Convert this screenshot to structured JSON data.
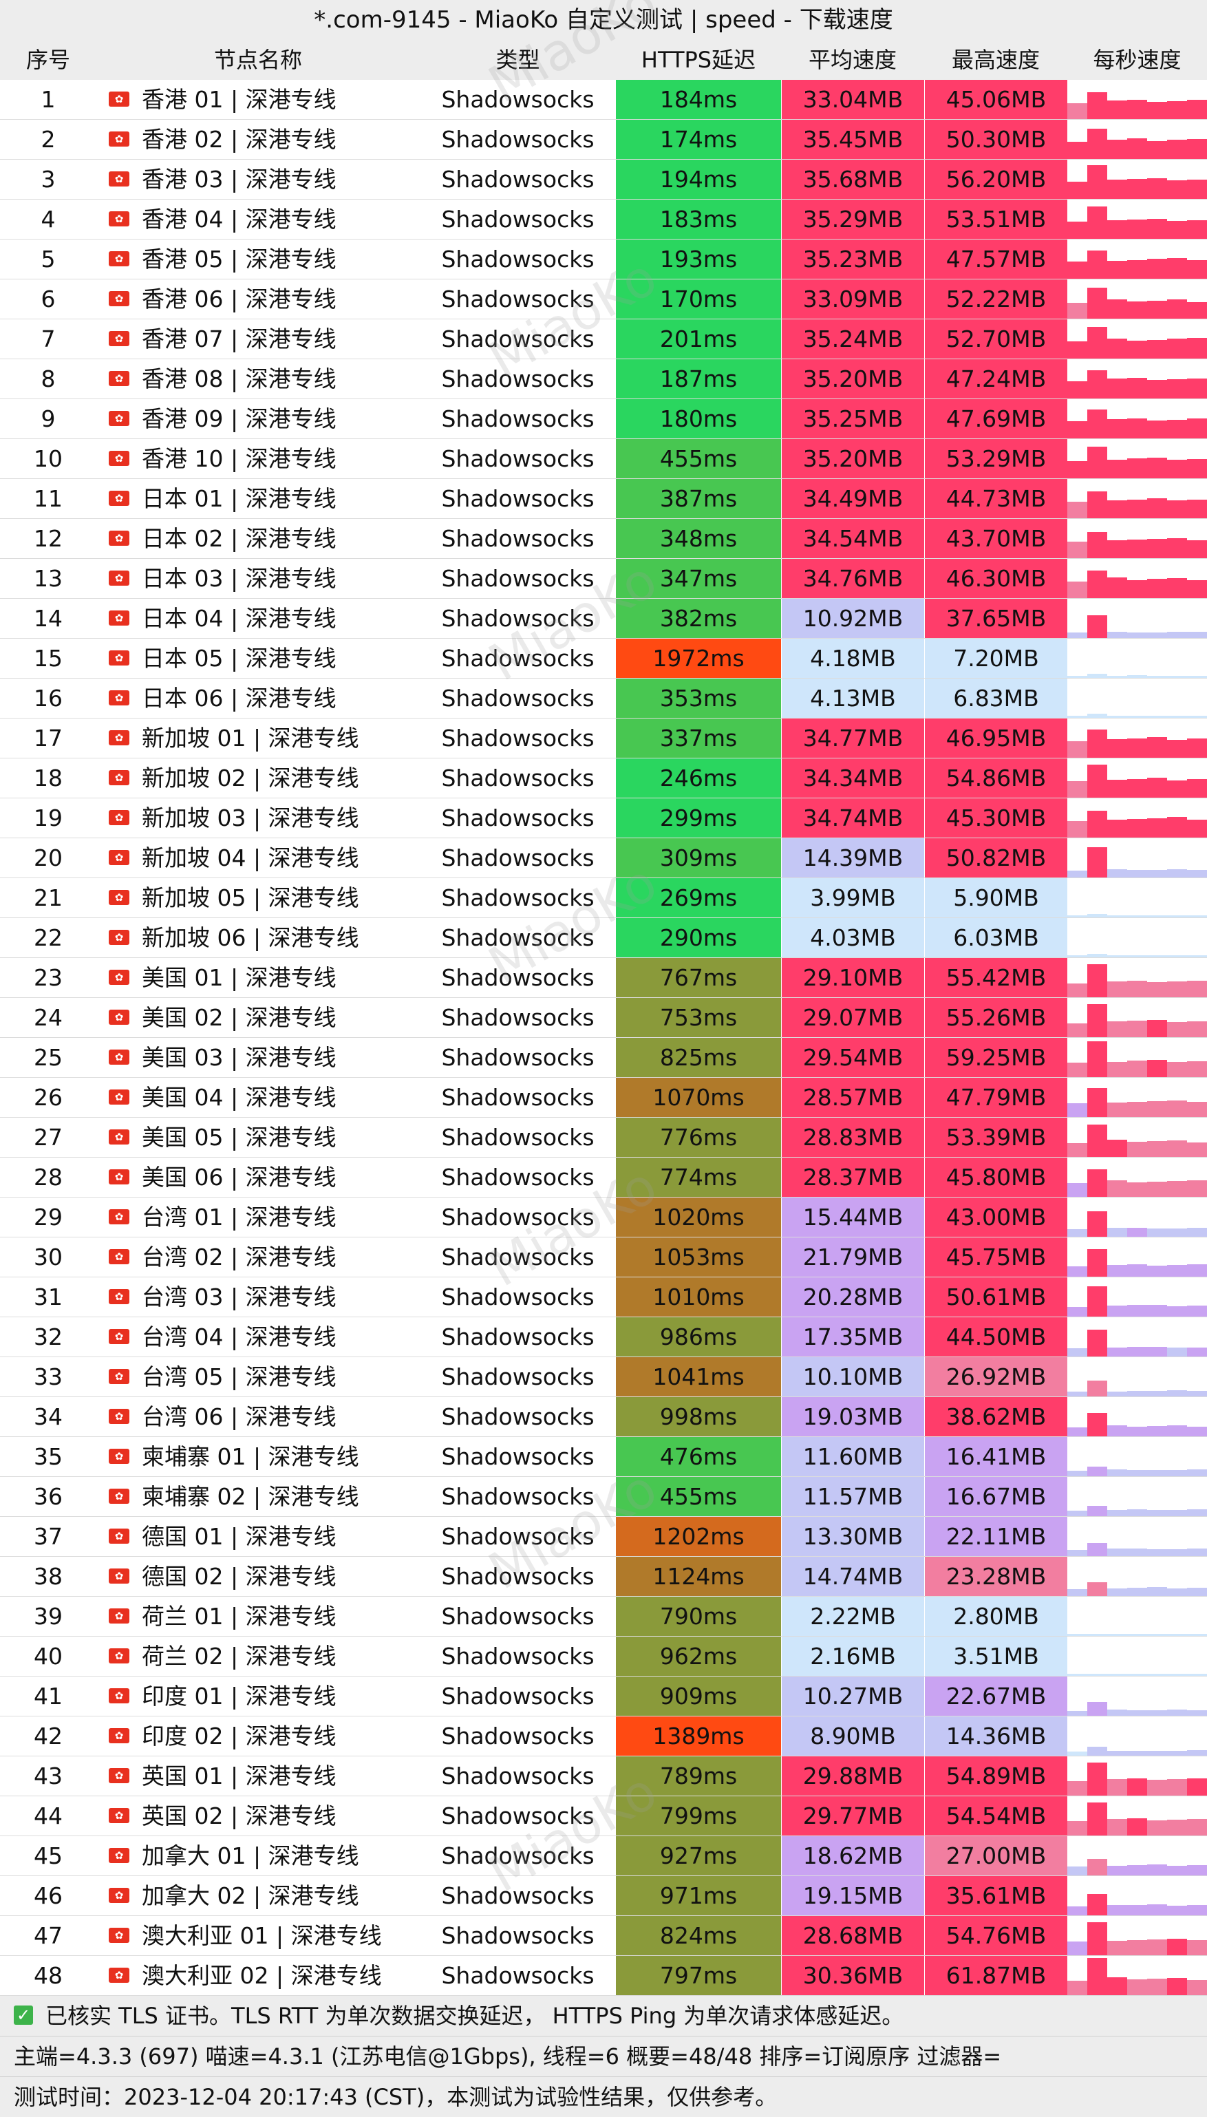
{
  "title": "*.com-9145 - MiaoKo 自定义测试 | speed - 下载速度",
  "watermark": "MiaoKo",
  "columns": [
    "序号",
    "节点名称",
    "类型",
    "HTTPS延迟",
    "平均速度",
    "最高速度",
    "每秒速度"
  ],
  "colors": {
    "header_bg": "#ededed",
    "latency_green": "#2ad65f",
    "latency_mid_green": "#48c751",
    "latency_olive": "#8a9a3a",
    "latency_brown": "#b07a2a",
    "latency_orange": "#d46a1e",
    "latency_red": "#ff4a12",
    "speed_hot": "#ff3d6a",
    "speed_pink": "#f27ea0",
    "speed_mid": "#c9a3f2",
    "speed_lavender": "#c4c7f5",
    "speed_light": "#cfe6fb",
    "check_green": "#3db34a"
  },
  "rows": [
    {
      "id": "1",
      "name": "香港 01 | 深港专线",
      "type": "Shadowsocks",
      "latency": "184ms",
      "avg": "33.04MB",
      "max": "45.06MB"
    },
    {
      "id": "2",
      "name": "香港 02 | 深港专线",
      "type": "Shadowsocks",
      "latency": "174ms",
      "avg": "35.45MB",
      "max": "50.30MB"
    },
    {
      "id": "3",
      "name": "香港 03 | 深港专线",
      "type": "Shadowsocks",
      "latency": "194ms",
      "avg": "35.68MB",
      "max": "56.20MB"
    },
    {
      "id": "4",
      "name": "香港 04 | 深港专线",
      "type": "Shadowsocks",
      "latency": "183ms",
      "avg": "35.29MB",
      "max": "53.51MB"
    },
    {
      "id": "5",
      "name": "香港 05 | 深港专线",
      "type": "Shadowsocks",
      "latency": "193ms",
      "avg": "35.23MB",
      "max": "47.57MB"
    },
    {
      "id": "6",
      "name": "香港 06 | 深港专线",
      "type": "Shadowsocks",
      "latency": "170ms",
      "avg": "33.09MB",
      "max": "52.22MB"
    },
    {
      "id": "7",
      "name": "香港 07 | 深港专线",
      "type": "Shadowsocks",
      "latency": "201ms",
      "avg": "35.24MB",
      "max": "52.70MB"
    },
    {
      "id": "8",
      "name": "香港 08 | 深港专线",
      "type": "Shadowsocks",
      "latency": "187ms",
      "avg": "35.20MB",
      "max": "47.24MB"
    },
    {
      "id": "9",
      "name": "香港 09 | 深港专线",
      "type": "Shadowsocks",
      "latency": "180ms",
      "avg": "35.25MB",
      "max": "47.69MB"
    },
    {
      "id": "10",
      "name": "香港 10 | 深港专线",
      "type": "Shadowsocks",
      "latency": "455ms",
      "avg": "35.20MB",
      "max": "53.29MB"
    },
    {
      "id": "11",
      "name": "日本 01 | 深港专线",
      "type": "Shadowsocks",
      "latency": "387ms",
      "avg": "34.49MB",
      "max": "44.73MB"
    },
    {
      "id": "12",
      "name": "日本 02 | 深港专线",
      "type": "Shadowsocks",
      "latency": "348ms",
      "avg": "34.54MB",
      "max": "43.70MB"
    },
    {
      "id": "13",
      "name": "日本 03 | 深港专线",
      "type": "Shadowsocks",
      "latency": "347ms",
      "avg": "34.76MB",
      "max": "46.30MB"
    },
    {
      "id": "14",
      "name": "日本 04 | 深港专线",
      "type": "Shadowsocks",
      "latency": "382ms",
      "avg": "10.92MB",
      "max": "37.65MB"
    },
    {
      "id": "15",
      "name": "日本 05 | 深港专线",
      "type": "Shadowsocks",
      "latency": "1972ms",
      "avg": "4.18MB",
      "max": "7.20MB"
    },
    {
      "id": "16",
      "name": "日本 06 | 深港专线",
      "type": "Shadowsocks",
      "latency": "353ms",
      "avg": "4.13MB",
      "max": "6.83MB"
    },
    {
      "id": "17",
      "name": "新加坡 01 | 深港专线",
      "type": "Shadowsocks",
      "latency": "337ms",
      "avg": "34.77MB",
      "max": "46.95MB"
    },
    {
      "id": "18",
      "name": "新加坡 02 | 深港专线",
      "type": "Shadowsocks",
      "latency": "246ms",
      "avg": "34.34MB",
      "max": "54.86MB"
    },
    {
      "id": "19",
      "name": "新加坡 03 | 深港专线",
      "type": "Shadowsocks",
      "latency": "299ms",
      "avg": "34.74MB",
      "max": "45.30MB"
    },
    {
      "id": "20",
      "name": "新加坡 04 | 深港专线",
      "type": "Shadowsocks",
      "latency": "309ms",
      "avg": "14.39MB",
      "max": "50.82MB"
    },
    {
      "id": "21",
      "name": "新加坡 05 | 深港专线",
      "type": "Shadowsocks",
      "latency": "269ms",
      "avg": "3.99MB",
      "max": "5.90MB"
    },
    {
      "id": "22",
      "name": "新加坡 06 | 深港专线",
      "type": "Shadowsocks",
      "latency": "290ms",
      "avg": "4.03MB",
      "max": "6.03MB"
    },
    {
      "id": "23",
      "name": "美国 01 | 深港专线",
      "type": "Shadowsocks",
      "latency": "767ms",
      "avg": "29.10MB",
      "max": "55.42MB"
    },
    {
      "id": "24",
      "name": "美国 02 | 深港专线",
      "type": "Shadowsocks",
      "latency": "753ms",
      "avg": "29.07MB",
      "max": "55.26MB"
    },
    {
      "id": "25",
      "name": "美国 03 | 深港专线",
      "type": "Shadowsocks",
      "latency": "825ms",
      "avg": "29.54MB",
      "max": "59.25MB"
    },
    {
      "id": "26",
      "name": "美国 04 | 深港专线",
      "type": "Shadowsocks",
      "latency": "1070ms",
      "avg": "28.57MB",
      "max": "47.79MB"
    },
    {
      "id": "27",
      "name": "美国 05 | 深港专线",
      "type": "Shadowsocks",
      "latency": "776ms",
      "avg": "28.83MB",
      "max": "53.39MB"
    },
    {
      "id": "28",
      "name": "美国 06 | 深港专线",
      "type": "Shadowsocks",
      "latency": "774ms",
      "avg": "28.37MB",
      "max": "45.80MB"
    },
    {
      "id": "29",
      "name": "台湾 01 | 深港专线",
      "type": "Shadowsocks",
      "latency": "1020ms",
      "avg": "15.44MB",
      "max": "43.00MB"
    },
    {
      "id": "30",
      "name": "台湾 02 | 深港专线",
      "type": "Shadowsocks",
      "latency": "1053ms",
      "avg": "21.79MB",
      "max": "45.75MB"
    },
    {
      "id": "31",
      "name": "台湾 03 | 深港专线",
      "type": "Shadowsocks",
      "latency": "1010ms",
      "avg": "20.28MB",
      "max": "50.61MB"
    },
    {
      "id": "32",
      "name": "台湾 04 | 深港专线",
      "type": "Shadowsocks",
      "latency": "986ms",
      "avg": "17.35MB",
      "max": "44.50MB"
    },
    {
      "id": "33",
      "name": "台湾 05 | 深港专线",
      "type": "Shadowsocks",
      "latency": "1041ms",
      "avg": "10.10MB",
      "max": "26.92MB"
    },
    {
      "id": "34",
      "name": "台湾 06 | 深港专线",
      "type": "Shadowsocks",
      "latency": "998ms",
      "avg": "19.03MB",
      "max": "38.62MB"
    },
    {
      "id": "35",
      "name": "柬埔寨 01 | 深港专线",
      "type": "Shadowsocks",
      "latency": "476ms",
      "avg": "11.60MB",
      "max": "16.41MB"
    },
    {
      "id": "36",
      "name": "柬埔寨 02 | 深港专线",
      "type": "Shadowsocks",
      "latency": "455ms",
      "avg": "11.57MB",
      "max": "16.67MB"
    },
    {
      "id": "37",
      "name": "德国 01 | 深港专线",
      "type": "Shadowsocks",
      "latency": "1202ms",
      "avg": "13.30MB",
      "max": "22.11MB"
    },
    {
      "id": "38",
      "name": "德国 02 | 深港专线",
      "type": "Shadowsocks",
      "latency": "1124ms",
      "avg": "14.74MB",
      "max": "23.28MB"
    },
    {
      "id": "39",
      "name": "荷兰 01 | 深港专线",
      "type": "Shadowsocks",
      "latency": "790ms",
      "avg": "2.22MB",
      "max": "2.80MB"
    },
    {
      "id": "40",
      "name": "荷兰 02 | 深港专线",
      "type": "Shadowsocks",
      "latency": "962ms",
      "avg": "2.16MB",
      "max": "3.51MB"
    },
    {
      "id": "41",
      "name": "印度 01 | 深港专线",
      "type": "Shadowsocks",
      "latency": "909ms",
      "avg": "10.27MB",
      "max": "22.67MB"
    },
    {
      "id": "42",
      "name": "印度 02 | 深港专线",
      "type": "Shadowsocks",
      "latency": "1389ms",
      "avg": "8.90MB",
      "max": "14.36MB"
    },
    {
      "id": "43",
      "name": "英国 01 | 深港专线",
      "type": "Shadowsocks",
      "latency": "789ms",
      "avg": "29.88MB",
      "max": "54.89MB"
    },
    {
      "id": "44",
      "name": "英国 02 | 深港专线",
      "type": "Shadowsocks",
      "latency": "799ms",
      "avg": "29.77MB",
      "max": "54.54MB"
    },
    {
      "id": "45",
      "name": "加拿大 01 | 深港专线",
      "type": "Shadowsocks",
      "latency": "927ms",
      "avg": "18.62MB",
      "max": "27.00MB"
    },
    {
      "id": "46",
      "name": "加拿大 02 | 深港专线",
      "type": "Shadowsocks",
      "latency": "971ms",
      "avg": "19.15MB",
      "max": "35.61MB"
    },
    {
      "id": "47",
      "name": "澳大利亚 01 | 深港专线",
      "type": "Shadowsocks",
      "latency": "824ms",
      "avg": "28.68MB",
      "max": "54.76MB"
    },
    {
      "id": "48",
      "name": "澳大利亚 02 | 深港专线",
      "type": "Shadowsocks",
      "latency": "797ms",
      "avg": "30.36MB",
      "max": "61.87MB"
    }
  ],
  "footer": {
    "line1": "已核实 TLS 证书。TLS RTT 为单次数据交换延迟， HTTPS Ping 为单次请求体感延迟。",
    "line2": "主端=4.3.3 (697) 喵速=4.3.1 (江苏电信@1Gbps), 线程=6 概要=48/48 排序=订阅原序 过滤器=",
    "line3": "测试时间：2023-12-04 20:17:43 (CST)，本测试为试验性结果，仅供参考。"
  }
}
